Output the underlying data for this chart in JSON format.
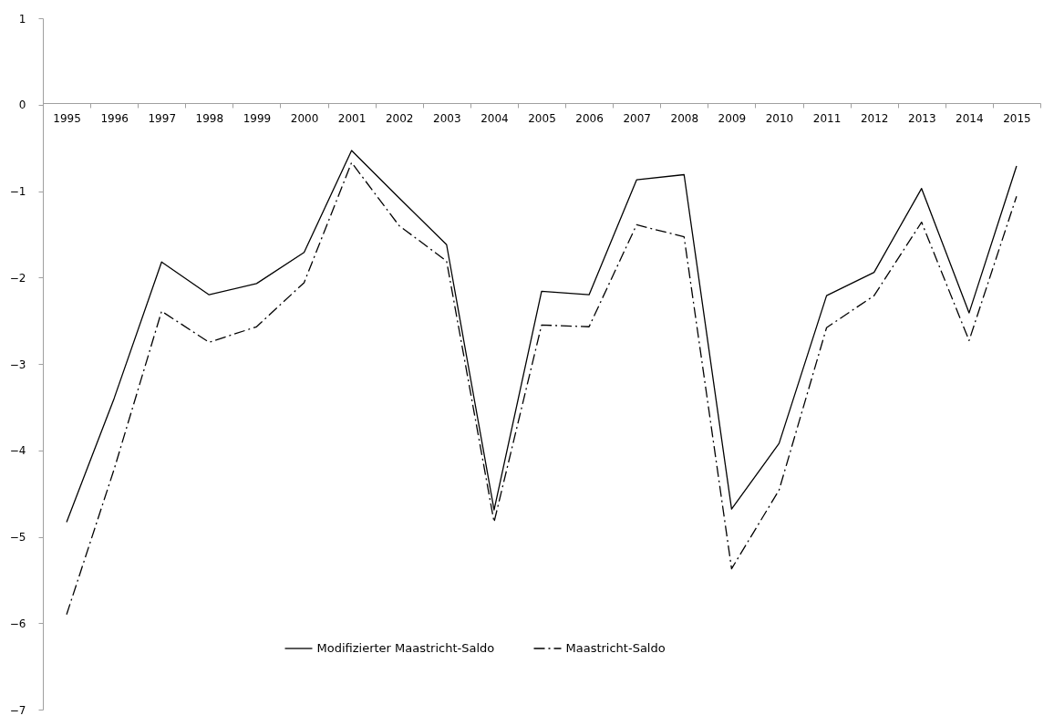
{
  "chart_data": {
    "type": "line",
    "categories": [
      "1995",
      "1996",
      "1997",
      "1998",
      "1999",
      "2000",
      "2001",
      "2002",
      "2003",
      "2004",
      "2005",
      "2006",
      "2007",
      "2008",
      "2009",
      "2010",
      "2011",
      "2012",
      "2013",
      "2014",
      "2015"
    ],
    "series": [
      {
        "name": "Modifizierter Maastricht-Saldo",
        "color": "#000000",
        "line_style": "solid",
        "values": [
          -4.83,
          -3.4,
          -1.82,
          -2.2,
          -2.07,
          -1.71,
          -0.53,
          -1.08,
          -1.62,
          -4.69,
          -2.16,
          -2.2,
          -0.87,
          -0.81,
          -4.68,
          -3.92,
          -2.21,
          -1.94,
          -0.97,
          -2.41,
          -0.71
        ]
      },
      {
        "name": "Maastricht-Saldo",
        "color": "#000000",
        "line_style": "dashdot",
        "values": [
          -5.9,
          -4.22,
          -2.39,
          -2.75,
          -2.57,
          -2.06,
          -0.67,
          -1.4,
          -1.81,
          -4.83,
          -2.55,
          -2.57,
          -1.39,
          -1.53,
          -5.37,
          -4.46,
          -2.58,
          -2.21,
          -1.36,
          -2.73,
          -1.06
        ]
      }
    ],
    "ylim": [
      -7,
      1
    ],
    "yticks": [
      -7,
      -6,
      -5,
      -4,
      -3,
      -2,
      -1,
      0,
      1
    ],
    "grid": false,
    "legend": "bottom",
    "marker": "none"
  }
}
